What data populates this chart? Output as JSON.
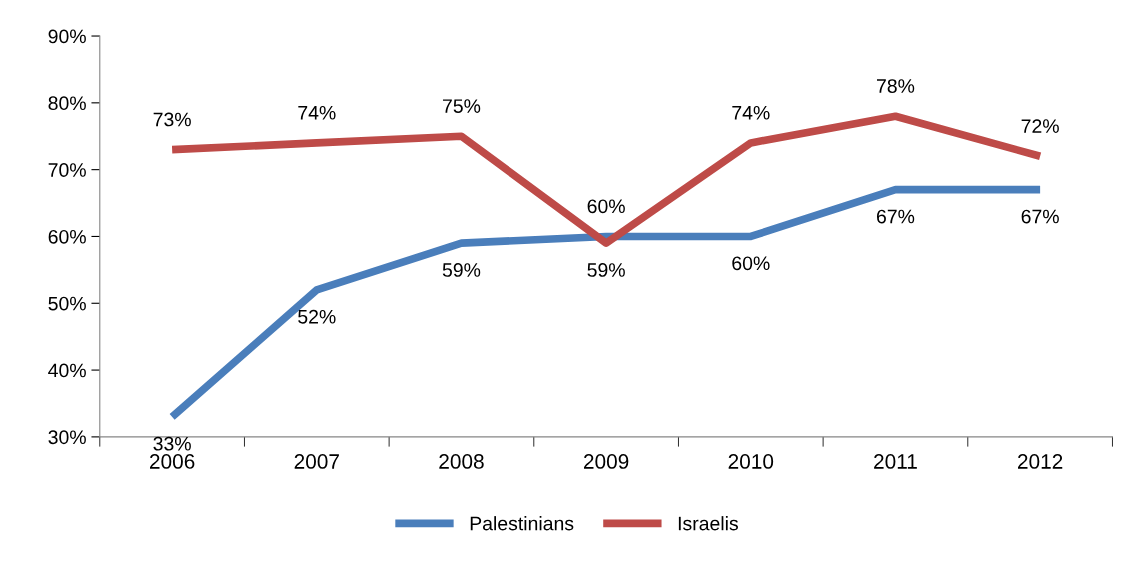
{
  "chart_data": {
    "type": "line",
    "categories": [
      "2006",
      "2007",
      "2008",
      "2009",
      "2010",
      "2011",
      "2012"
    ],
    "series": [
      {
        "name": "Palestinians",
        "color": "#4a7ebb",
        "values": [
          33,
          52,
          59,
          60,
          60,
          67,
          67
        ],
        "value_labels": [
          "33%",
          "52%",
          "59%",
          "60%",
          "60%",
          "67%",
          "67%"
        ]
      },
      {
        "name": "Israelis",
        "color": "#be4b48",
        "values": [
          73,
          74,
          75,
          59,
          74,
          78,
          72
        ],
        "value_labels": [
          "73%",
          "74%",
          "75%",
          "59%",
          "74%",
          "78%",
          "72%"
        ]
      }
    ],
    "ylim": [
      30,
      90
    ],
    "yticks": [
      {
        "value": 30,
        "label": "30%"
      },
      {
        "value": 40,
        "label": "40%"
      },
      {
        "value": 50,
        "label": "50%"
      },
      {
        "value": 60,
        "label": "60%"
      },
      {
        "value": 70,
        "label": "70%"
      },
      {
        "value": 80,
        "label": "80%"
      },
      {
        "value": 90,
        "label": "90%"
      }
    ],
    "grid": false,
    "legend": "bottom",
    "marker": "none",
    "line_style": "solid"
  }
}
